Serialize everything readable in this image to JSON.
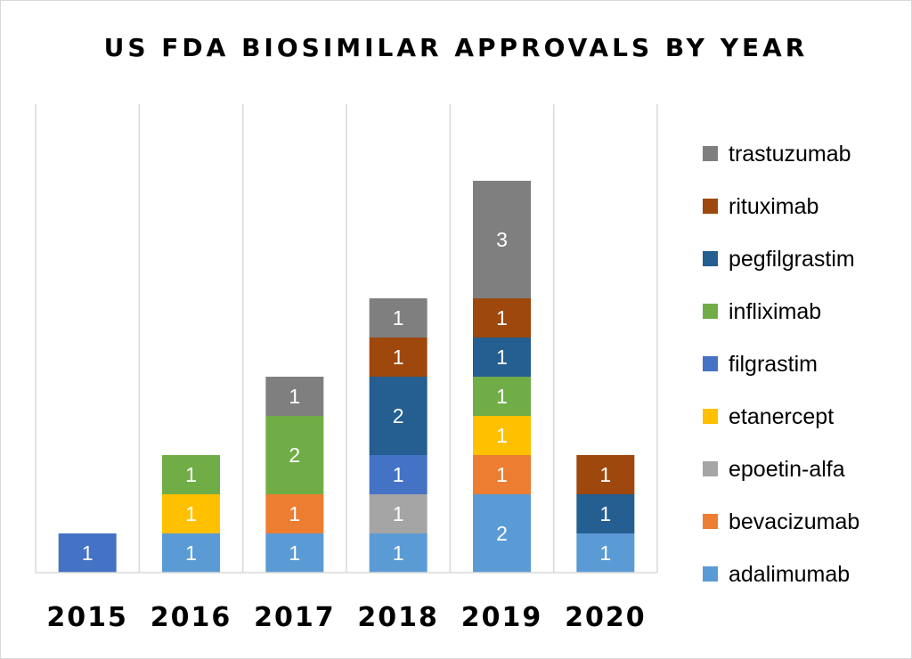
{
  "chart_data": {
    "type": "bar",
    "stacked": true,
    "title": "US FDA BIOSIMILAR APPROVALS BY YEAR",
    "xlabel": "",
    "ylabel": "",
    "ylim": [
      0,
      10
    ],
    "grid": "vertical",
    "legend_position": "right",
    "categories": [
      "2015",
      "2016",
      "2017",
      "2018",
      "2019",
      "2020"
    ],
    "series": [
      {
        "name": "adalimumab",
        "color": "#5b9bd5",
        "values": [
          0,
          1,
          1,
          1,
          2,
          1
        ]
      },
      {
        "name": "bevacizumab",
        "color": "#ed7d31",
        "values": [
          0,
          0,
          1,
          0,
          1,
          0
        ]
      },
      {
        "name": "epoetin-alfa",
        "color": "#a5a5a5",
        "values": [
          0,
          0,
          0,
          1,
          0,
          0
        ]
      },
      {
        "name": "etanercept",
        "color": "#ffc000",
        "values": [
          0,
          1,
          0,
          0,
          1,
          0
        ]
      },
      {
        "name": "filgrastim",
        "color": "#4472c4",
        "values": [
          1,
          0,
          0,
          1,
          0,
          0
        ]
      },
      {
        "name": "infliximab",
        "color": "#70ad47",
        "values": [
          0,
          1,
          2,
          0,
          1,
          0
        ]
      },
      {
        "name": "pegfilgrastim",
        "color": "#255e91",
        "values": [
          0,
          0,
          0,
          2,
          1,
          1
        ]
      },
      {
        "name": "rituximab",
        "color": "#9e480e",
        "values": [
          0,
          0,
          0,
          1,
          1,
          1
        ]
      },
      {
        "name": "trastuzumab",
        "color": "#7f7f7f",
        "values": [
          0,
          0,
          1,
          1,
          3,
          0
        ]
      }
    ]
  }
}
